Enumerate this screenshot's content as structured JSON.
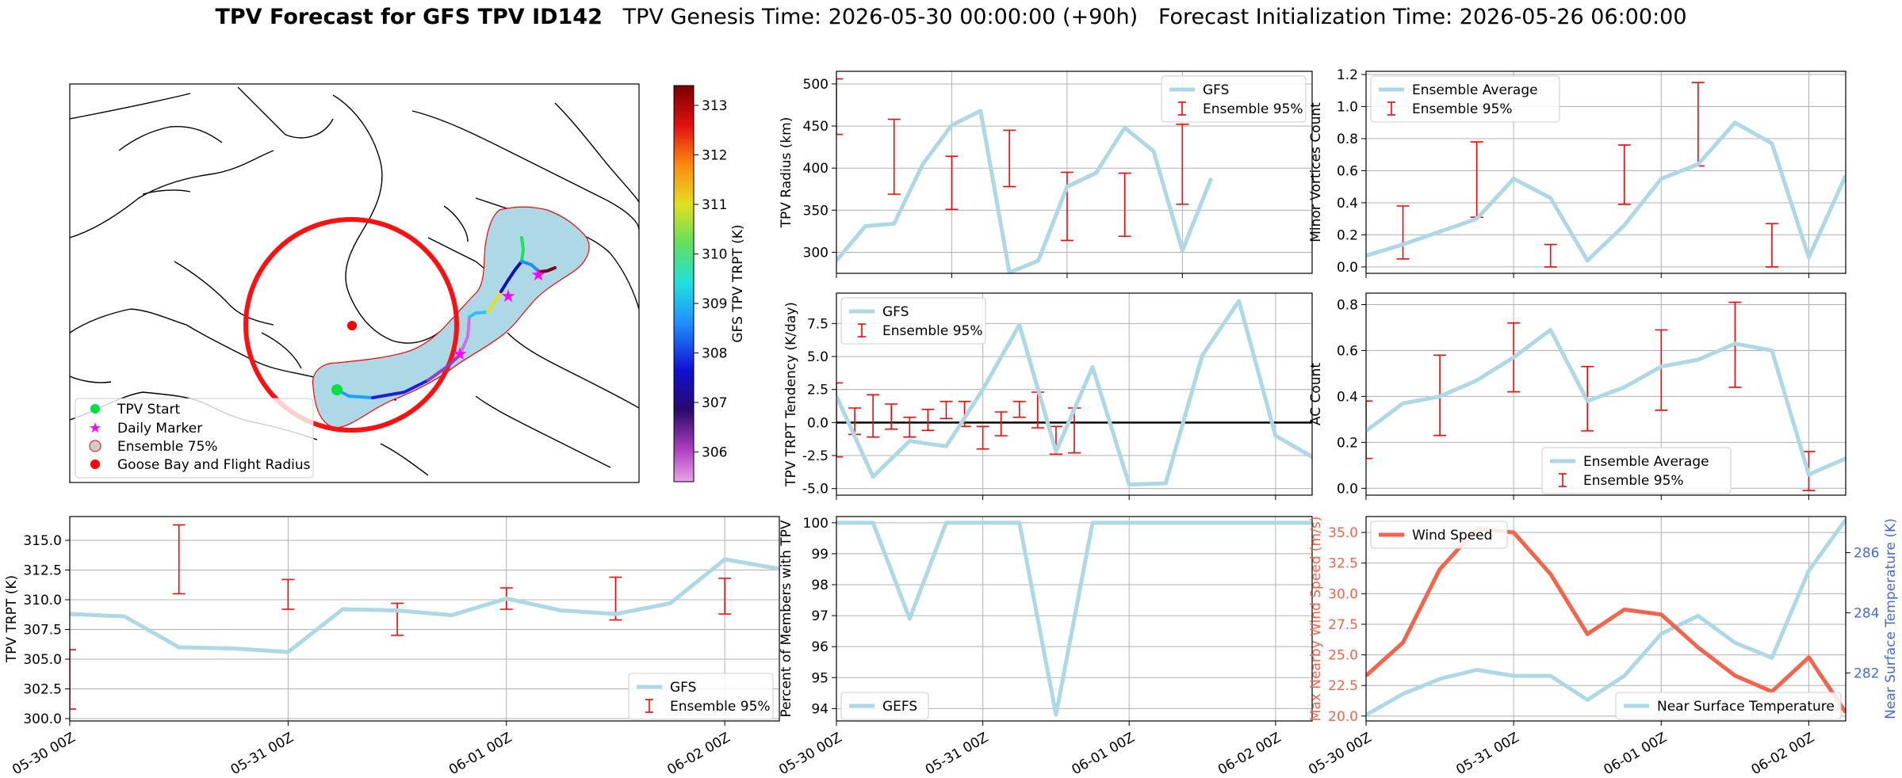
{
  "title": {
    "bold": "TPV Forecast for GFS TPV ID142",
    "genesis": "TPV Genesis Time: 2026-05-30 00:00:00 (+90h)",
    "init": "Forecast Initialization Time: 2026-05-26 06:00:00"
  },
  "colors": {
    "gfs_line": "#add8e6",
    "error_bar": "#ff0000",
    "wind_line": "#f4634a",
    "temp_axis": "#4169e1",
    "zero_line": "#000000"
  },
  "date_ticks": [
    "05-30 00Z",
    "05-31 00Z",
    "06-01 00Z",
    "06-02 00Z"
  ],
  "map": {
    "colorbar_label": "GFS TPV TRPT (K)",
    "colorbar_ticks": [
      306,
      307,
      308,
      309,
      310,
      311,
      312,
      313
    ],
    "colorbar_range": [
      305.4,
      313.4
    ],
    "legend": [
      "TPV Start",
      "Daily Marker",
      "Ensemble 75%",
      "Goose Bay and Flight Radius"
    ]
  },
  "chart_data": [
    {
      "id": "radius",
      "type": "line",
      "ylabel": "TPV Radius (km)",
      "xlim": [
        0,
        99
      ],
      "ylim": [
        275,
        515
      ],
      "yticks": [
        300,
        350,
        400,
        450,
        500
      ],
      "x": [
        0,
        6,
        12,
        18,
        24,
        30,
        36,
        42,
        48,
        54,
        60,
        66,
        72,
        78,
        84,
        90,
        96,
        99
      ],
      "y": [
        290,
        331,
        334,
        405,
        451,
        468,
        276,
        290,
        378,
        394,
        448,
        420,
        302,
        388,
        null,
        null,
        null,
        null
      ],
      "gfs_x": [
        0,
        6,
        12,
        18,
        24,
        30,
        36,
        42,
        48,
        54,
        60,
        66,
        72,
        78
      ],
      "gfs_y": [
        290,
        331,
        334,
        405,
        451,
        468,
        276,
        290,
        378,
        394,
        448,
        420,
        302,
        388
      ],
      "errorbars": [
        {
          "x": 0,
          "low": 440,
          "high": 506
        },
        {
          "x": 12,
          "low": 369,
          "high": 458
        },
        {
          "x": 24,
          "low": 351,
          "high": 414
        },
        {
          "x": 36,
          "low": 378,
          "high": 445
        },
        {
          "x": 48,
          "low": 314,
          "high": 395
        },
        {
          "x": 60,
          "low": 319,
          "high": 394
        },
        {
          "x": 72,
          "low": 357,
          "high": 452
        }
      ],
      "legend": [
        "GFS",
        "Ensemble 95%"
      ]
    },
    {
      "id": "minor",
      "type": "line",
      "ylabel": "Minor Vortices Count",
      "xlim": [
        0,
        78
      ],
      "ylim": [
        -0.04,
        1.22
      ],
      "yticks": [
        0.0,
        0.2,
        0.4,
        0.6,
        0.8,
        1.0,
        1.2
      ],
      "gfs_x": [
        0,
        6,
        12,
        18,
        24,
        30,
        36,
        42,
        48,
        54,
        60,
        66,
        72,
        78
      ],
      "gfs_y": [
        0.07,
        0.14,
        0.22,
        0.3,
        0.55,
        0.43,
        0.04,
        0.26,
        0.55,
        0.64,
        0.9,
        0.77,
        0.06,
        0.57
      ],
      "errorbars": [
        {
          "x": 6,
          "low": 0.05,
          "high": 0.38
        },
        {
          "x": 18,
          "low": 0.31,
          "high": 0.78
        },
        {
          "x": 30,
          "low": 0.0,
          "high": 0.14
        },
        {
          "x": 42,
          "low": 0.39,
          "high": 0.76
        },
        {
          "x": 54,
          "low": 0.63,
          "high": 1.15
        },
        {
          "x": 66,
          "low": 0.0,
          "high": 0.27
        }
      ],
      "legend": [
        "Ensemble Average",
        "Ensemble 95%"
      ]
    },
    {
      "id": "tendency",
      "type": "line",
      "ylabel": "TPV TRPT Tendency (K/day)",
      "xlim": [
        0,
        78
      ],
      "ylim": [
        -5.5,
        9.8
      ],
      "yticks": [
        -5.0,
        -2.5,
        0.0,
        2.5,
        5.0,
        7.5
      ],
      "gfs_x": [
        0,
        6,
        12,
        18,
        24,
        30,
        36,
        42,
        48,
        54,
        60,
        66,
        72,
        78
      ],
      "gfs_y": [
        2.0,
        -4.1,
        -1.4,
        -1.8,
        2.5,
        7.4,
        -2.2,
        4.2,
        -4.7,
        -4.6,
        5.1,
        9.2,
        -1.0,
        -2.6
      ],
      "errorbars": [
        {
          "x": 0,
          "low": -2.6,
          "high": 3.0
        },
        {
          "x": 3,
          "low": -0.9,
          "high": 1.1
        },
        {
          "x": 6,
          "low": -1.1,
          "high": 2.1
        },
        {
          "x": 9,
          "low": -0.5,
          "high": 1.4
        },
        {
          "x": 12,
          "low": -1.1,
          "high": 0.4
        },
        {
          "x": 15,
          "low": -0.6,
          "high": 1.0
        },
        {
          "x": 18,
          "low": 0.3,
          "high": 1.6
        },
        {
          "x": 21,
          "low": -0.3,
          "high": 1.6
        },
        {
          "x": 24,
          "low": -2.0,
          "high": -0.3
        },
        {
          "x": 27,
          "low": -1.0,
          "high": 0.8
        },
        {
          "x": 30,
          "low": 0.4,
          "high": 1.6
        },
        {
          "x": 33,
          "low": -0.4,
          "high": 2.3
        },
        {
          "x": 36,
          "low": -2.4,
          "high": -0.3
        },
        {
          "x": 39,
          "low": -2.3,
          "high": 1.1
        }
      ],
      "legend": [
        "GFS",
        "Ensemble 95%"
      ]
    },
    {
      "id": "ac",
      "type": "line",
      "ylabel": "AC Count",
      "xlim": [
        0,
        78
      ],
      "ylim": [
        -0.03,
        0.85
      ],
      "yticks": [
        0.0,
        0.2,
        0.4,
        0.6,
        0.8
      ],
      "gfs_x": [
        0,
        6,
        12,
        18,
        24,
        30,
        36,
        42,
        48,
        54,
        60,
        66,
        72,
        78
      ],
      "gfs_y": [
        0.25,
        0.37,
        0.4,
        0.47,
        0.57,
        0.69,
        0.38,
        0.44,
        0.53,
        0.56,
        0.63,
        0.6,
        0.06,
        0.13
      ],
      "errorbars": [
        {
          "x": 0,
          "low": 0.13,
          "high": 0.38
        },
        {
          "x": 12,
          "low": 0.23,
          "high": 0.58
        },
        {
          "x": 24,
          "low": 0.42,
          "high": 0.72
        },
        {
          "x": 36,
          "low": 0.25,
          "high": 0.53
        },
        {
          "x": 48,
          "low": 0.34,
          "high": 0.69
        },
        {
          "x": 60,
          "low": 0.44,
          "high": 0.81
        },
        {
          "x": 72,
          "low": -0.01,
          "high": 0.16
        }
      ],
      "legend": [
        "Ensemble Average",
        "Ensemble 95%"
      ]
    },
    {
      "id": "trpt",
      "type": "line",
      "ylabel": "TPV TRPT (K)",
      "xlim": [
        0,
        78
      ],
      "ylim": [
        299.8,
        317.0
      ],
      "yticks": [
        300.0,
        302.5,
        305.0,
        307.5,
        310.0,
        312.5,
        315.0
      ],
      "gfs_x": [
        0,
        6,
        12,
        18,
        24,
        30,
        36,
        42,
        48,
        54,
        60,
        66,
        72,
        78
      ],
      "gfs_y": [
        308.8,
        308.6,
        306.0,
        305.9,
        305.6,
        309.2,
        309.1,
        308.7,
        310.1,
        309.1,
        308.8,
        309.7,
        313.4,
        312.6
      ],
      "errorbars": [
        {
          "x": 0,
          "low": 300.8,
          "high": 305.8
        },
        {
          "x": 12,
          "low": 310.5,
          "high": 316.3
        },
        {
          "x": 24,
          "low": 309.2,
          "high": 311.7
        },
        {
          "x": 36,
          "low": 307.0,
          "high": 309.7
        },
        {
          "x": 48,
          "low": 309.2,
          "high": 311.0
        },
        {
          "x": 60,
          "low": 308.3,
          "high": 311.9
        },
        {
          "x": 72,
          "low": 308.8,
          "high": 311.8
        }
      ],
      "legend": [
        "GFS",
        "Ensemble 95%"
      ]
    },
    {
      "id": "percent",
      "type": "line",
      "ylabel": "Percent of Members with TPV",
      "xlim": [
        0,
        78
      ],
      "ylim": [
        93.6,
        100.2
      ],
      "yticks": [
        94,
        95,
        96,
        97,
        98,
        99,
        100
      ],
      "gfs_x": [
        0,
        6,
        12,
        18,
        24,
        30,
        36,
        42,
        48,
        54,
        60,
        66,
        72,
        78
      ],
      "gfs_y": [
        100,
        100,
        96.9,
        100,
        100,
        100,
        93.8,
        100,
        100,
        100,
        100,
        100,
        100,
        100
      ],
      "errorbars": [],
      "legend": [
        "GEFS"
      ]
    },
    {
      "id": "wind",
      "type": "line",
      "ylabel": "Max Nearby Wind Speed (m/s)",
      "ylabel_right": "Near Surface Temperature (K)",
      "xlim": [
        0,
        78
      ],
      "ylim": [
        19.6,
        36.3
      ],
      "yticks": [
        20.0,
        22.5,
        25.0,
        27.5,
        30.0,
        32.5,
        35.0
      ],
      "ylim_right": [
        280.4,
        287.2
      ],
      "yticks_right": [
        282,
        284,
        286
      ],
      "wind_x": [
        0,
        6,
        12,
        18,
        24,
        30,
        36,
        42,
        48,
        54,
        60,
        66,
        72,
        78
      ],
      "wind_y": [
        23.3,
        26.0,
        32.0,
        35.3,
        35.0,
        31.6,
        26.7,
        28.7,
        28.3,
        25.6,
        23.3,
        22.0,
        24.8,
        20.3
      ],
      "temp_x": [
        0,
        6,
        12,
        18,
        24,
        30,
        36,
        42,
        48,
        54,
        60,
        66,
        72,
        78
      ],
      "temp_y": [
        280.6,
        281.3,
        281.8,
        282.1,
        281.9,
        281.9,
        281.1,
        281.9,
        283.3,
        283.9,
        283.0,
        282.5,
        285.4,
        287.1
      ],
      "legend_left": [
        "Wind Speed"
      ],
      "legend_right": [
        "Near Surface Temperature"
      ]
    }
  ]
}
